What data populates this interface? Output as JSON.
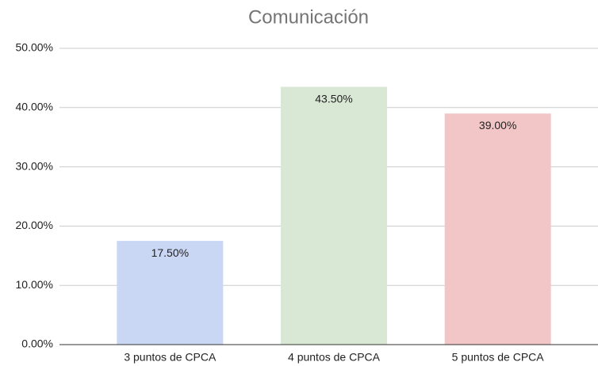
{
  "chart_data": {
    "type": "bar",
    "title": "Comunicación",
    "categories": [
      "3 puntos de CPCA",
      "4 puntos de CPCA",
      "5 puntos de CPCA"
    ],
    "values": [
      17.5,
      43.5,
      39
    ],
    "value_labels": [
      "17.50%",
      "43.50%",
      "39.00%"
    ],
    "colors": [
      "#c9d7f5",
      "#d9e8d5",
      "#f2c6c6"
    ],
    "ylim": [
      0,
      50
    ],
    "yticks": [
      {
        "value": 0,
        "label": "0.00%"
      },
      {
        "value": 10,
        "label": "10.00%"
      },
      {
        "value": 20,
        "label": "20.00%"
      },
      {
        "value": 30,
        "label": "30.00%"
      },
      {
        "value": 40,
        "label": "40.00%"
      },
      {
        "value": 50,
        "label": "50.00%"
      }
    ],
    "grid": true
  }
}
